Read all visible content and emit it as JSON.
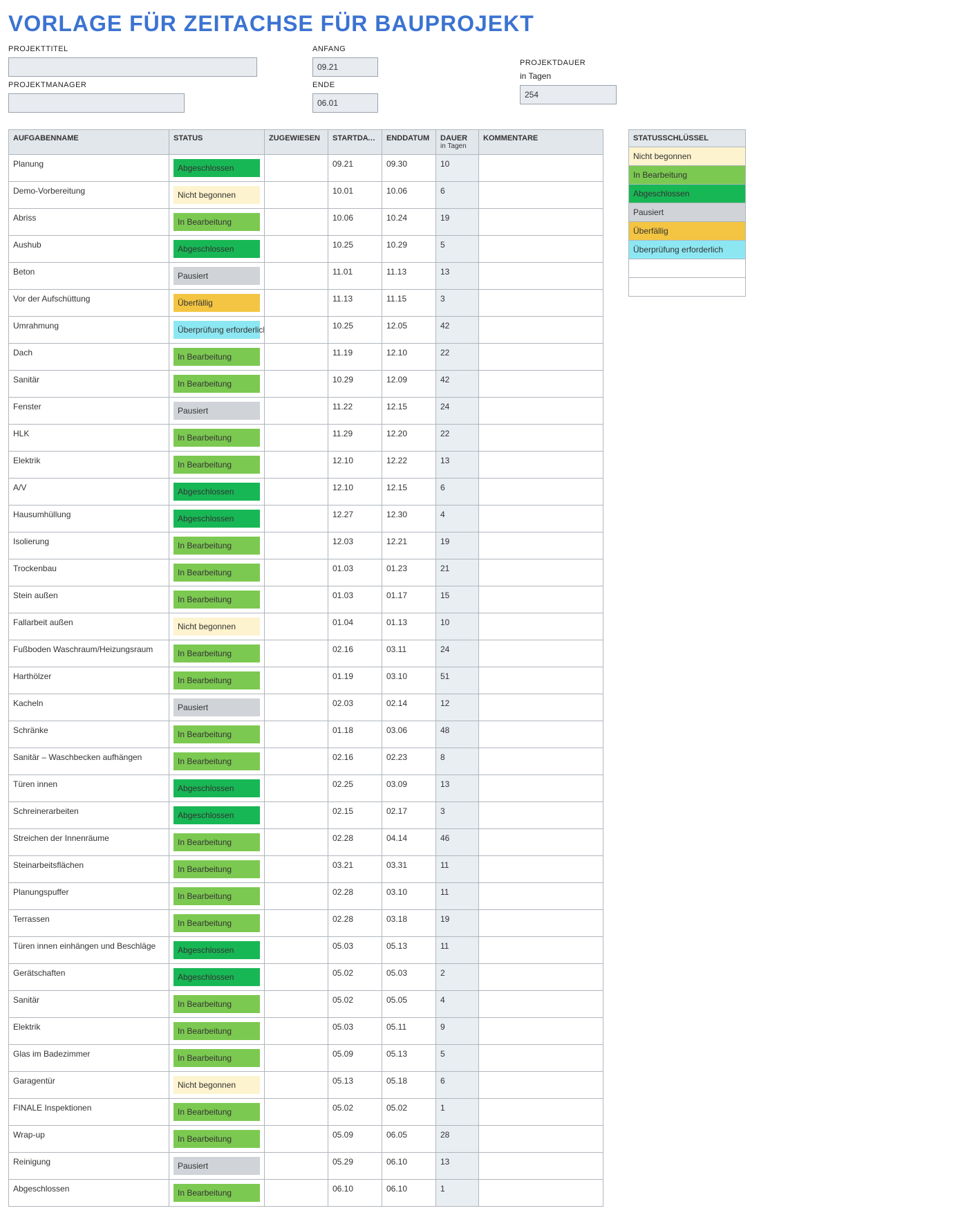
{
  "title": "VORLAGE FÜR ZEITACHSE FÜR BAUPROJEKT",
  "header": {
    "project_title_label": "PROJEKTTITEL",
    "project_title_value": "",
    "project_manager_label": "PROJEKTMANAGER",
    "project_manager_value": "",
    "start_label": "ANFANG",
    "start_value": "09.21",
    "end_label": "ENDE",
    "end_value": "06.01",
    "duration_label": "PROJEKTDAUER",
    "duration_sub": "in Tagen",
    "duration_value": "254"
  },
  "columns": {
    "name": "AUFGABENNAME",
    "status": "STATUS",
    "assigned": "ZUGEWIESEN",
    "start": "STARTDATUM",
    "end": "ENDDATUM",
    "duration": "DAUER",
    "duration_sub": "in Tagen",
    "comments": "KOMMENTARE"
  },
  "status_colors": {
    "Nicht begonnen": "#fdf3ce",
    "In Bearbeitung": "#7cc951",
    "Abgeschlossen": "#18b755",
    "Pausiert": "#d0d3d7",
    "Überfällig": "#f4c542",
    "Überprüfung erforderlich": "#8ce7f2"
  },
  "key": {
    "header": "STATUSSCHLÜSSEL",
    "rows": [
      "Nicht begonnen",
      "In Bearbeitung",
      "Abgeschlossen",
      "Pausiert",
      "Überfällig",
      "Überprüfung erforderlich",
      "",
      ""
    ]
  },
  "tasks": [
    {
      "name": "Planung",
      "status": "Abgeschlossen",
      "assigned": "",
      "start": "09.21",
      "end": "09.30",
      "dur": "10",
      "comments": ""
    },
    {
      "name": "Demo-Vorbereitung",
      "status": "Nicht begonnen",
      "assigned": "",
      "start": "10.01",
      "end": "10.06",
      "dur": "6",
      "comments": ""
    },
    {
      "name": "Abriss",
      "status": "In Bearbeitung",
      "assigned": "",
      "start": "10.06",
      "end": "10.24",
      "dur": "19",
      "comments": ""
    },
    {
      "name": "Aushub",
      "status": "Abgeschlossen",
      "assigned": "",
      "start": "10.25",
      "end": "10.29",
      "dur": "5",
      "comments": ""
    },
    {
      "name": "Beton",
      "status": "Pausiert",
      "assigned": "",
      "start": "11.01",
      "end": "11.13",
      "dur": "13",
      "comments": ""
    },
    {
      "name": "Vor der Aufschüttung",
      "status": "Überfällig",
      "assigned": "",
      "start": "11.13",
      "end": "11.15",
      "dur": "3",
      "comments": ""
    },
    {
      "name": "Umrahmung",
      "status": "Überprüfung erforderlich",
      "assigned": "",
      "start": "10.25",
      "end": "12.05",
      "dur": "42",
      "comments": ""
    },
    {
      "name": "Dach",
      "status": "In Bearbeitung",
      "assigned": "",
      "start": "11.19",
      "end": "12.10",
      "dur": "22",
      "comments": ""
    },
    {
      "name": "Sanitär",
      "status": "In Bearbeitung",
      "assigned": "",
      "start": "10.29",
      "end": "12.09",
      "dur": "42",
      "comments": ""
    },
    {
      "name": "Fenster",
      "status": "Pausiert",
      "assigned": "",
      "start": "11.22",
      "end": "12.15",
      "dur": "24",
      "comments": ""
    },
    {
      "name": "HLK",
      "status": "In Bearbeitung",
      "assigned": "",
      "start": "11.29",
      "end": "12.20",
      "dur": "22",
      "comments": ""
    },
    {
      "name": "Elektrik",
      "status": "In Bearbeitung",
      "assigned": "",
      "start": "12.10",
      "end": "12.22",
      "dur": "13",
      "comments": ""
    },
    {
      "name": "A/V",
      "status": "Abgeschlossen",
      "assigned": "",
      "start": "12.10",
      "end": "12.15",
      "dur": "6",
      "comments": ""
    },
    {
      "name": "Hausumhüllung",
      "status": "Abgeschlossen",
      "assigned": "",
      "start": "12.27",
      "end": "12.30",
      "dur": "4",
      "comments": ""
    },
    {
      "name": "Isolierung",
      "status": "In Bearbeitung",
      "assigned": "",
      "start": "12.03",
      "end": "12.21",
      "dur": "19",
      "comments": ""
    },
    {
      "name": "Trockenbau",
      "status": "In Bearbeitung",
      "assigned": "",
      "start": "01.03",
      "end": "01.23",
      "dur": "21",
      "comments": ""
    },
    {
      "name": "Stein außen",
      "status": "In Bearbeitung",
      "assigned": "",
      "start": "01.03",
      "end": "01.17",
      "dur": "15",
      "comments": ""
    },
    {
      "name": "Fallarbeit außen",
      "status": "Nicht begonnen",
      "assigned": "",
      "start": "01.04",
      "end": "01.13",
      "dur": "10",
      "comments": ""
    },
    {
      "name": "Fußboden Waschraum/Heizungsraum",
      "status": "In Bearbeitung",
      "assigned": "",
      "start": "02.16",
      "end": "03.11",
      "dur": "24",
      "comments": ""
    },
    {
      "name": "Harthölzer",
      "status": "In Bearbeitung",
      "assigned": "",
      "start": "01.19",
      "end": "03.10",
      "dur": "51",
      "comments": ""
    },
    {
      "name": "Kacheln",
      "status": "Pausiert",
      "assigned": "",
      "start": "02.03",
      "end": "02.14",
      "dur": "12",
      "comments": ""
    },
    {
      "name": "Schränke",
      "status": "In Bearbeitung",
      "assigned": "",
      "start": "01.18",
      "end": "03.06",
      "dur": "48",
      "comments": ""
    },
    {
      "name": "Sanitär – Waschbecken aufhängen",
      "status": "In Bearbeitung",
      "assigned": "",
      "start": "02.16",
      "end": "02.23",
      "dur": "8",
      "comments": ""
    },
    {
      "name": "Türen innen",
      "status": "Abgeschlossen",
      "assigned": "",
      "start": "02.25",
      "end": "03.09",
      "dur": "13",
      "comments": ""
    },
    {
      "name": "Schreinerarbeiten",
      "status": "Abgeschlossen",
      "assigned": "",
      "start": "02.15",
      "end": "02.17",
      "dur": "3",
      "comments": ""
    },
    {
      "name": "Streichen der Innenräume",
      "status": "In Bearbeitung",
      "assigned": "",
      "start": "02.28",
      "end": "04.14",
      "dur": "46",
      "comments": ""
    },
    {
      "name": "Steinarbeitsflächen",
      "status": "In Bearbeitung",
      "assigned": "",
      "start": "03.21",
      "end": "03.31",
      "dur": "11",
      "comments": ""
    },
    {
      "name": "Planungspuffer",
      "status": "In Bearbeitung",
      "assigned": "",
      "start": "02.28",
      "end": "03.10",
      "dur": "11",
      "comments": ""
    },
    {
      "name": "Terrassen",
      "status": "In Bearbeitung",
      "assigned": "",
      "start": "02.28",
      "end": "03.18",
      "dur": "19",
      "comments": ""
    },
    {
      "name": "Türen innen einhängen und Beschläge",
      "status": "Abgeschlossen",
      "assigned": "",
      "start": "05.03",
      "end": "05.13",
      "dur": "11",
      "comments": ""
    },
    {
      "name": "Gerätschaften",
      "status": "Abgeschlossen",
      "assigned": "",
      "start": "05.02",
      "end": "05.03",
      "dur": "2",
      "comments": ""
    },
    {
      "name": "Sanitär",
      "status": "In Bearbeitung",
      "assigned": "",
      "start": "05.02",
      "end": "05.05",
      "dur": "4",
      "comments": ""
    },
    {
      "name": "Elektrik",
      "status": "In Bearbeitung",
      "assigned": "",
      "start": "05.03",
      "end": "05.11",
      "dur": "9",
      "comments": ""
    },
    {
      "name": "Glas im Badezimmer",
      "status": "In Bearbeitung",
      "assigned": "",
      "start": "05.09",
      "end": "05.13",
      "dur": "5",
      "comments": ""
    },
    {
      "name": "Garagentür",
      "status": "Nicht begonnen",
      "assigned": "",
      "start": "05.13",
      "end": "05.18",
      "dur": "6",
      "comments": ""
    },
    {
      "name": "FINALE Inspektionen",
      "status": "In Bearbeitung",
      "assigned": "",
      "start": "05.02",
      "end": "05.02",
      "dur": "1",
      "comments": ""
    },
    {
      "name": "Wrap-up",
      "status": "In Bearbeitung",
      "assigned": "",
      "start": "05.09",
      "end": "06.05",
      "dur": "28",
      "comments": ""
    },
    {
      "name": "Reinigung",
      "status": "Pausiert",
      "assigned": "",
      "start": "05.29",
      "end": "06.10",
      "dur": "13",
      "comments": ""
    },
    {
      "name": "Abgeschlossen",
      "status": "In Bearbeitung",
      "assigned": "",
      "start": "06.10",
      "end": "06.10",
      "dur": "1",
      "comments": ""
    }
  ]
}
